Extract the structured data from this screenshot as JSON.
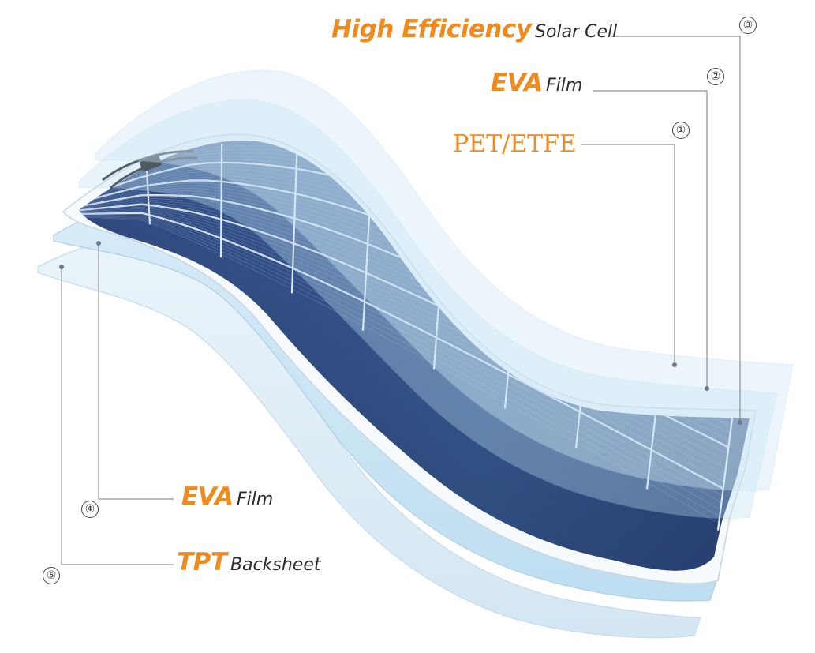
{
  "layers": [
    {
      "id": 1,
      "number": "①",
      "name": "PET/ETFE",
      "suffix": ""
    },
    {
      "id": 2,
      "number": "②",
      "name": "EVA",
      "suffix": "Film"
    },
    {
      "id": 3,
      "number": "③",
      "name": "High Efficiency",
      "suffix": "Solar Cell"
    },
    {
      "id": 4,
      "number": "④",
      "name": "EVA",
      "suffix": "Film"
    },
    {
      "id": 5,
      "number": "⑤",
      "name": "TPT",
      "suffix": "Backsheet"
    }
  ],
  "colors": {
    "accent": "#f08a1c",
    "text": "#2a2a2a",
    "film": "#cfe6f5",
    "cell": "#2f4f86",
    "cell_dark": "#1f2f5a"
  },
  "icons": [
    "junction-box-icon"
  ]
}
